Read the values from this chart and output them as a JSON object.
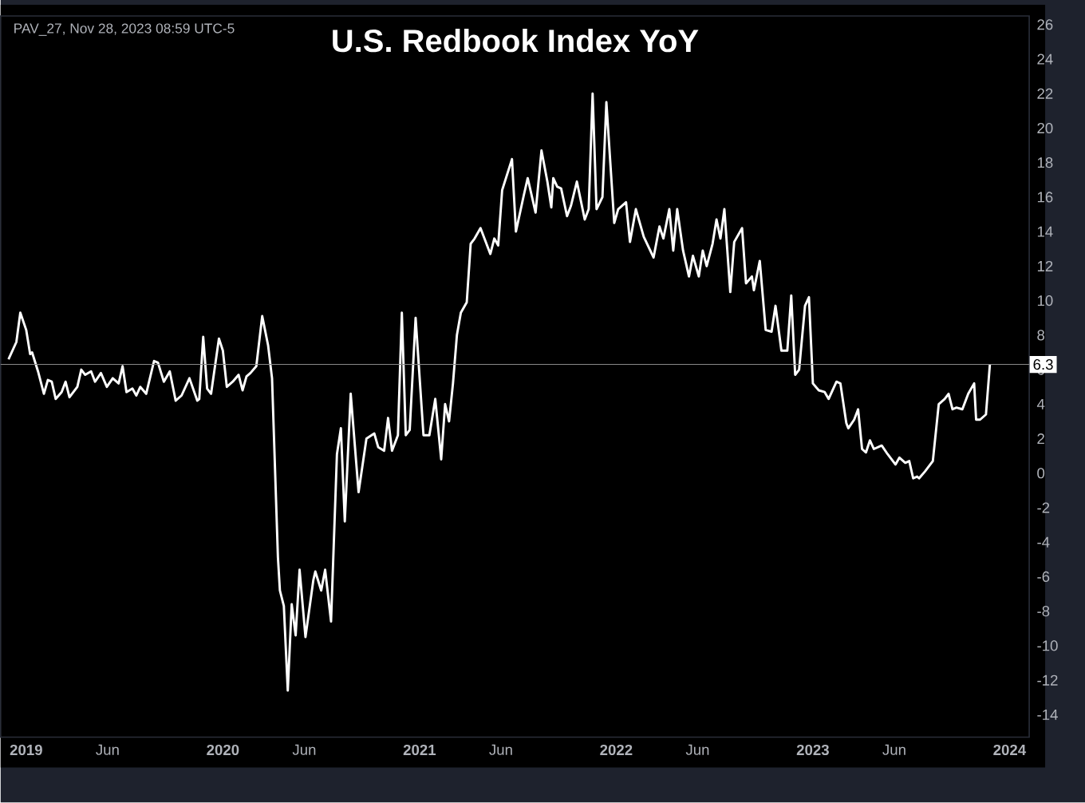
{
  "chart_data": {
    "type": "line",
    "title": "U.S. Redbook Index YoY",
    "annotations": [
      "PAV_27, Nov 28, 2023 08:59 UTC-5"
    ],
    "xlim": [
      2018.87,
      2024.1
    ],
    "xticks": [
      {
        "value": 2019,
        "label": "2019"
      },
      {
        "value": 2019.414,
        "label": "Jun"
      },
      {
        "value": 2020,
        "label": "2020"
      },
      {
        "value": 2020.414,
        "label": "Jun"
      },
      {
        "value": 2021,
        "label": "2021"
      },
      {
        "value": 2021.414,
        "label": "Jun"
      },
      {
        "value": 2022,
        "label": "2022"
      },
      {
        "value": 2022.414,
        "label": "Jun"
      },
      {
        "value": 2023,
        "label": "2023"
      },
      {
        "value": 2023.414,
        "label": "Jun"
      },
      {
        "value": 2024,
        "label": "2024"
      }
    ],
    "ylim": [
      -15.3,
      26.5
    ],
    "yticks": [
      -14,
      -12,
      -10,
      -8,
      -6,
      -4,
      -2,
      0,
      2,
      4,
      6,
      8,
      10,
      12,
      14,
      16,
      18,
      20,
      22,
      24,
      26
    ],
    "ref_lines": [
      {
        "axis": "y",
        "value": 6.3,
        "label": "6.3",
        "color": "#888888"
      }
    ],
    "marker": "none",
    "line_style": "solid",
    "series": [
      {
        "color": "#ffffff",
        "x": [
          2018.91,
          2018.95,
          2018.97,
          2019.0,
          2019.02,
          2019.03,
          2019.06,
          2019.09,
          2019.11,
          2019.13,
          2019.15,
          2019.18,
          2019.2,
          2019.22,
          2019.26,
          2019.28,
          2019.3,
          2019.33,
          2019.35,
          2019.38,
          2019.41,
          2019.44,
          2019.47,
          2019.49,
          2019.51,
          2019.54,
          2019.56,
          2019.58,
          2019.61,
          2019.65,
          2019.67,
          2019.7,
          2019.73,
          2019.76,
          2019.79,
          2019.83,
          2019.87,
          2019.88,
          2019.9,
          2019.92,
          2019.94,
          2019.98,
          2020.0,
          2020.02,
          2020.05,
          2020.08,
          2020.1,
          2020.12,
          2020.14,
          2020.17,
          2020.2,
          2020.23,
          2020.25,
          2020.28,
          2020.29,
          2020.31,
          2020.33,
          2020.35,
          2020.37,
          2020.39,
          2020.42,
          2020.46,
          2020.47,
          2020.5,
          2020.52,
          2020.55,
          2020.58,
          2020.6,
          2020.62,
          2020.65,
          2020.69,
          2020.73,
          2020.77,
          2020.79,
          2020.82,
          2020.84,
          2020.86,
          2020.89,
          2020.91,
          2020.93,
          2020.95,
          2020.98,
          2021.02,
          2021.05,
          2021.08,
          2021.11,
          2021.13,
          2021.15,
          2021.17,
          2021.19,
          2021.21,
          2021.24,
          2021.26,
          2021.28,
          2021.31,
          2021.33,
          2021.36,
          2021.38,
          2021.4,
          2021.42,
          2021.47,
          2021.49,
          2021.53,
          2021.55,
          2021.59,
          2021.62,
          2021.65,
          2021.67,
          2021.68,
          2021.7,
          2021.72,
          2021.75,
          2021.77,
          2021.8,
          2021.84,
          2021.86,
          2021.88,
          2021.9,
          2021.93,
          2021.95,
          2021.99,
          2022.01,
          2022.05,
          2022.07,
          2022.1,
          2022.14,
          2022.19,
          2022.22,
          2022.24,
          2022.27,
          2022.29,
          2022.31,
          2022.34,
          2022.37,
          2022.39,
          2022.42,
          2022.44,
          2022.46,
          2022.49,
          2022.51,
          2022.53,
          2022.55,
          2022.58,
          2022.6,
          2022.64,
          2022.66,
          2022.69,
          2022.7,
          2022.73,
          2022.76,
          2022.79,
          2022.81,
          2022.84,
          2022.87,
          2022.89,
          2022.91,
          2022.93,
          2022.96,
          2022.98,
          2023.0,
          2023.03,
          2023.06,
          2023.08,
          2023.12,
          2023.14,
          2023.17,
          2023.18,
          2023.21,
          2023.23,
          2023.25,
          2023.27,
          2023.29,
          2023.31,
          2023.35,
          2023.38,
          2023.42,
          2023.44,
          2023.47,
          2023.49,
          2023.51,
          2023.53,
          2023.54,
          2023.57,
          2023.61,
          2023.64,
          2023.67,
          2023.69,
          2023.71,
          2023.73,
          2023.76,
          2023.79,
          2023.82,
          2023.83,
          2023.85,
          2023.88,
          2023.9
        ],
        "values": [
          6.6,
          7.6,
          9.3,
          8.3,
          6.9,
          7.0,
          5.9,
          4.6,
          5.4,
          5.3,
          4.3,
          4.7,
          5.3,
          4.4,
          5.0,
          6.0,
          5.7,
          5.9,
          5.3,
          5.8,
          5.0,
          5.5,
          5.2,
          6.2,
          4.7,
          4.9,
          4.5,
          5.0,
          4.6,
          6.5,
          6.4,
          5.3,
          5.9,
          4.2,
          4.5,
          5.5,
          4.2,
          4.3,
          7.9,
          4.9,
          4.6,
          7.8,
          7.1,
          5.0,
          5.3,
          5.7,
          4.8,
          5.6,
          5.8,
          6.2,
          9.1,
          7.4,
          5.5,
          -4.9,
          -6.8,
          -7.7,
          -12.6,
          -7.6,
          -9.4,
          -5.6,
          -9.5,
          -6.2,
          -5.7,
          -6.8,
          -5.6,
          -8.6,
          1.1,
          2.6,
          -2.8,
          4.6,
          -1.1,
          2.0,
          2.3,
          1.5,
          1.3,
          3.2,
          1.3,
          2.2,
          9.3,
          2.2,
          2.5,
          9.0,
          2.2,
          2.2,
          4.3,
          0.8,
          4.0,
          3.0,
          5.2,
          8.0,
          9.3,
          9.9,
          13.3,
          13.6,
          14.2,
          13.6,
          12.7,
          13.6,
          13.2,
          16.4,
          18.2,
          14.0,
          16.1,
          17.1,
          15.1,
          18.7,
          16.9,
          15.4,
          17.1,
          16.6,
          16.5,
          14.9,
          15.5,
          16.9,
          14.7,
          15.3,
          22.0,
          15.3,
          16.0,
          21.5,
          14.5,
          15.3,
          15.7,
          13.4,
          15.3,
          13.7,
          12.5,
          14.3,
          13.6,
          15.3,
          12.9,
          15.3,
          12.9,
          11.4,
          12.6,
          11.4,
          12.9,
          12.0,
          13.3,
          14.7,
          13.6,
          15.3,
          10.5,
          13.4,
          14.2,
          11.0,
          11.4,
          10.6,
          12.3,
          8.3,
          8.2,
          9.7,
          7.1,
          7.1,
          10.3,
          5.7,
          6.0,
          9.7,
          10.2,
          5.2,
          4.8,
          4.7,
          4.3,
          5.3,
          5.2,
          2.9,
          2.6,
          3.1,
          3.7,
          1.4,
          1.2,
          1.9,
          1.4,
          1.6,
          1.1,
          0.5,
          0.9,
          0.6,
          0.7,
          -0.3,
          -0.2,
          -0.3,
          0.1,
          0.7,
          4.0,
          4.3,
          4.6,
          3.7,
          3.8,
          3.7,
          4.6,
          5.2,
          3.1,
          3.1,
          3.4,
          6.3
        ]
      }
    ]
  }
}
